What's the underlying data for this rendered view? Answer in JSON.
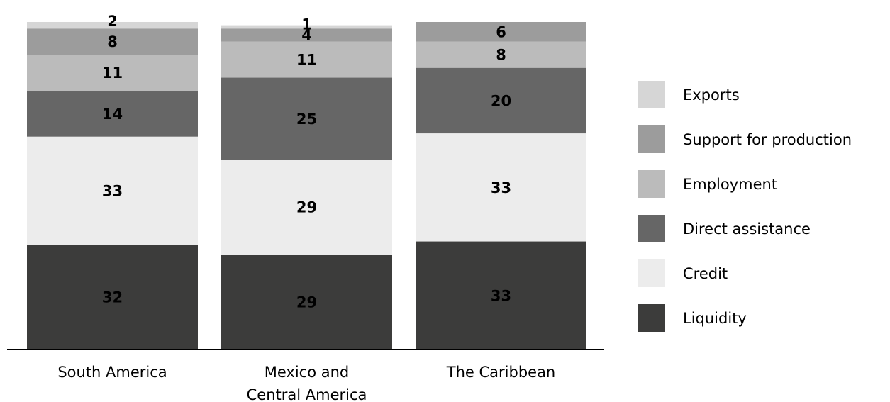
{
  "chart_data": {
    "type": "bar",
    "stacked": true,
    "percent_stacked": true,
    "categories": [
      "South America",
      "Mexico and Central America",
      "The Caribbean"
    ],
    "category_label_lines": [
      [
        "South America"
      ],
      [
        "Mexico and",
        "Central America"
      ],
      [
        "The Caribbean"
      ]
    ],
    "series": [
      {
        "name": "Liquidity",
        "values": [
          32,
          29,
          33
        ],
        "color": "#3c3c3b"
      },
      {
        "name": "Credit",
        "values": [
          33,
          29,
          33
        ],
        "color": "#ececec"
      },
      {
        "name": "Direct assistance",
        "values": [
          14,
          25,
          20
        ],
        "color": "#666666"
      },
      {
        "name": "Employment",
        "values": [
          11,
          11,
          8
        ],
        "color": "#bbbbbb"
      },
      {
        "name": "Support for production",
        "values": [
          8,
          4,
          6
        ],
        "color": "#9c9c9c"
      },
      {
        "name": "Exports",
        "values": [
          2,
          1,
          0
        ],
        "color": "#d6d6d6"
      }
    ],
    "legend_order": [
      "Exports",
      "Support for production",
      "Employment",
      "Direct assistance",
      "Credit",
      "Liquidity"
    ],
    "legend_position": "right",
    "ylim": [
      0,
      100
    ],
    "grid": false,
    "title": "",
    "xlabel": "",
    "ylabel": ""
  }
}
